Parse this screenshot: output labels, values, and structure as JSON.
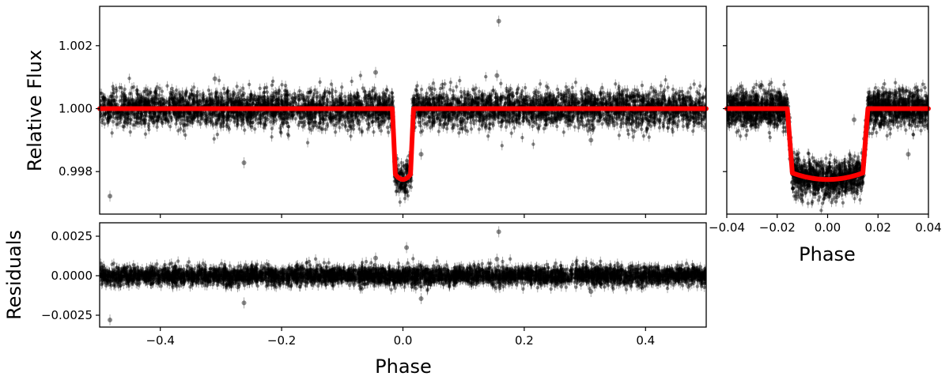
{
  "chart_data": [
    {
      "id": "light-curve",
      "type": "scatter",
      "title": "",
      "xlabel": "",
      "ylabel": "Relative Flux",
      "xlim": [
        -0.5,
        0.5
      ],
      "ylim": [
        0.99665,
        1.00325
      ],
      "xticks": [
        -0.4,
        -0.2,
        0.0,
        0.2,
        0.4
      ],
      "xtick_labels": [
        "",
        "",
        "",
        "",
        ""
      ],
      "yticks": [
        0.998,
        1.0,
        1.002
      ],
      "ytick_labels": [
        "0.998",
        "1.000",
        "1.002"
      ],
      "grid": false,
      "legend": "none",
      "series": [
        {
          "kind": "data",
          "color": "#000000",
          "outliers": [
            {
              "x": -0.483,
              "y": 0.99722
            },
            {
              "x": -0.262,
              "y": 0.99828
            },
            {
              "x": 0.158,
              "y": 1.00278
            },
            {
              "x": 0.155,
              "y": 1.00105
            },
            {
              "x": 0.03,
              "y": 0.99855
            },
            {
              "x": -0.045,
              "y": 1.00115
            },
            {
              "x": -0.31,
              "y": 1.00095
            },
            {
              "x": 0.31,
              "y": 0.999
            }
          ]
        },
        {
          "kind": "model",
          "color": "#ff0000",
          "x": [
            -0.5,
            -0.016,
            -0.014,
            -0.011,
            -0.008,
            -0.004,
            0.0,
            0.004,
            0.008,
            0.011,
            0.014,
            0.016,
            0.5
          ],
          "y": [
            1.0,
            1.0,
            0.9988,
            0.9981,
            0.99787,
            0.99777,
            0.99775,
            0.99777,
            0.99787,
            0.9981,
            0.9988,
            1.0,
            1.0
          ]
        }
      ],
      "noise_sigma": 0.00028,
      "transit_depth": 0.00225,
      "transit_half_width": 0.016,
      "transit_ingress": 0.002
    },
    {
      "id": "transit-zoom",
      "type": "scatter",
      "title": "",
      "xlabel": "Phase",
      "ylabel": "",
      "xlim": [
        -0.04,
        0.04
      ],
      "ylim": [
        0.99665,
        1.00325
      ],
      "xticks": [
        -0.04,
        -0.02,
        0.0,
        0.02,
        0.04
      ],
      "xtick_labels": [
        "−0.04",
        "−0.02",
        "0.00",
        "0.02",
        "0.04"
      ],
      "yticks": [
        0.998,
        1.0,
        1.002
      ],
      "ytick_labels": [
        "",
        "",
        ""
      ],
      "grid": false,
      "legend": "none",
      "series": [
        {
          "kind": "data",
          "color": "#000000",
          "outliers": [
            {
              "x": 0.032,
              "y": 0.99855
            },
            {
              "x": 0.0105,
              "y": 0.99965
            }
          ]
        },
        {
          "kind": "model",
          "color": "#ff0000",
          "x": [
            -0.04,
            -0.016,
            -0.014,
            -0.011,
            -0.008,
            -0.004,
            0.0,
            0.004,
            0.008,
            0.011,
            0.014,
            0.016,
            0.04
          ],
          "y": [
            1.0,
            1.0,
            0.9988,
            0.9981,
            0.99787,
            0.99777,
            0.99775,
            0.99777,
            0.99787,
            0.9981,
            0.9988,
            1.0,
            1.0
          ]
        }
      ]
    },
    {
      "id": "residuals",
      "type": "scatter",
      "title": "",
      "xlabel": "Phase",
      "ylabel": "Residuals",
      "xlim": [
        -0.5,
        0.5
      ],
      "ylim": [
        -0.00325,
        0.00335
      ],
      "xticks": [
        -0.4,
        -0.2,
        0.0,
        0.2,
        0.4
      ],
      "xtick_labels": [
        "−0.4",
        "−0.2",
        "0.0",
        "0.2",
        "0.4"
      ],
      "yticks": [
        -0.0025,
        0.0,
        0.0025
      ],
      "ytick_labels": [
        "−0.0025",
        "0.0000",
        "0.0025"
      ],
      "grid": false,
      "legend": "none",
      "series": [
        {
          "kind": "data",
          "color": "#000000",
          "outliers": [
            {
              "x": -0.483,
              "y": -0.0028
            },
            {
              "x": -0.262,
              "y": -0.00172
            },
            {
              "x": 0.158,
              "y": 0.00278
            },
            {
              "x": 0.155,
              "y": 0.00105
            },
            {
              "x": 0.006,
              "y": 0.00178
            },
            {
              "x": 0.03,
              "y": -0.00145
            },
            {
              "x": -0.045,
              "y": 0.00112
            },
            {
              "x": 0.31,
              "y": -0.001
            }
          ]
        }
      ]
    }
  ]
}
